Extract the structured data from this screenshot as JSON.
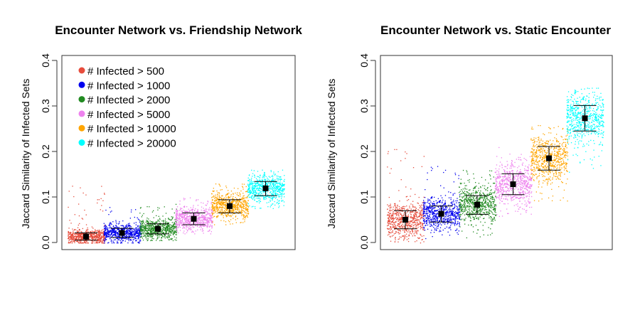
{
  "chart_data": [
    {
      "type": "scatter",
      "title": "Encounter Network vs. Friendship Network",
      "xlabel": "",
      "ylabel": "Jaccard Similarity of Infected Sets",
      "ylim": [
        0,
        0.4
      ],
      "yticks": [
        "0.0",
        "0.1",
        "0.2",
        "0.3",
        "0.4"
      ],
      "legend": {
        "position": "top-left",
        "entries": [
          {
            "label": "# Infected > 500",
            "color": "#e74c3c"
          },
          {
            "label": "# Infected > 1000",
            "color": "#0000ee"
          },
          {
            "label": "# Infected > 2000",
            "color": "#228b22"
          },
          {
            "label": "# Infected > 5000",
            "color": "#ee82ee"
          },
          {
            "label": "# Infected > 10000",
            "color": "#ffa500"
          },
          {
            "label": "# Infected > 20000",
            "color": "#00ffff"
          }
        ]
      },
      "series": [
        {
          "name": "# Infected > 500",
          "color": "#e74c3c",
          "mean": 0.013,
          "sd_low": 0.005,
          "sd_high": 0.021,
          "range": [
            0.0,
            0.13
          ]
        },
        {
          "name": "# Infected > 1000",
          "color": "#0000ee",
          "mean": 0.021,
          "sd_low": 0.011,
          "sd_high": 0.031,
          "range": [
            0.0,
            0.08
          ]
        },
        {
          "name": "# Infected > 2000",
          "color": "#228b22",
          "mean": 0.03,
          "sd_low": 0.019,
          "sd_high": 0.041,
          "range": [
            0.005,
            0.085
          ]
        },
        {
          "name": "# Infected > 5000",
          "color": "#ee82ee",
          "mean": 0.052,
          "sd_low": 0.039,
          "sd_high": 0.065,
          "range": [
            0.02,
            0.1
          ]
        },
        {
          "name": "# Infected > 10000",
          "color": "#ffa500",
          "mean": 0.08,
          "sd_low": 0.065,
          "sd_high": 0.094,
          "range": [
            0.04,
            0.13
          ]
        },
        {
          "name": "# Infected > 20000",
          "color": "#00ffff",
          "mean": 0.119,
          "sd_low": 0.103,
          "sd_high": 0.134,
          "range": [
            0.075,
            0.16
          ]
        }
      ]
    },
    {
      "type": "scatter",
      "title": "Encounter Network vs. Static Encounter",
      "xlabel": "",
      "ylabel": "Jaccard Similarity of Infected Sets",
      "ylim": [
        0,
        0.4
      ],
      "yticks": [
        "0.0",
        "0.1",
        "0.2",
        "0.3",
        "0.4"
      ],
      "series": [
        {
          "name": "# Infected > 500",
          "color": "#e74c3c",
          "mean": 0.05,
          "sd_low": 0.03,
          "sd_high": 0.07,
          "range": [
            0.0,
            0.22
          ]
        },
        {
          "name": "# Infected > 1000",
          "color": "#0000ee",
          "mean": 0.063,
          "sd_low": 0.045,
          "sd_high": 0.08,
          "range": [
            0.005,
            0.17
          ]
        },
        {
          "name": "# Infected > 2000",
          "color": "#228b22",
          "mean": 0.083,
          "sd_low": 0.062,
          "sd_high": 0.103,
          "range": [
            0.01,
            0.16
          ]
        },
        {
          "name": "# Infected > 5000",
          "color": "#ee82ee",
          "mean": 0.128,
          "sd_low": 0.105,
          "sd_high": 0.151,
          "range": [
            0.05,
            0.21
          ]
        },
        {
          "name": "# Infected > 10000",
          "color": "#ffa500",
          "mean": 0.185,
          "sd_low": 0.159,
          "sd_high": 0.211,
          "range": [
            0.09,
            0.27
          ]
        },
        {
          "name": "# Infected > 20000",
          "color": "#00ffff",
          "mean": 0.273,
          "sd_low": 0.245,
          "sd_high": 0.301,
          "range": [
            0.15,
            0.34
          ]
        }
      ]
    }
  ]
}
